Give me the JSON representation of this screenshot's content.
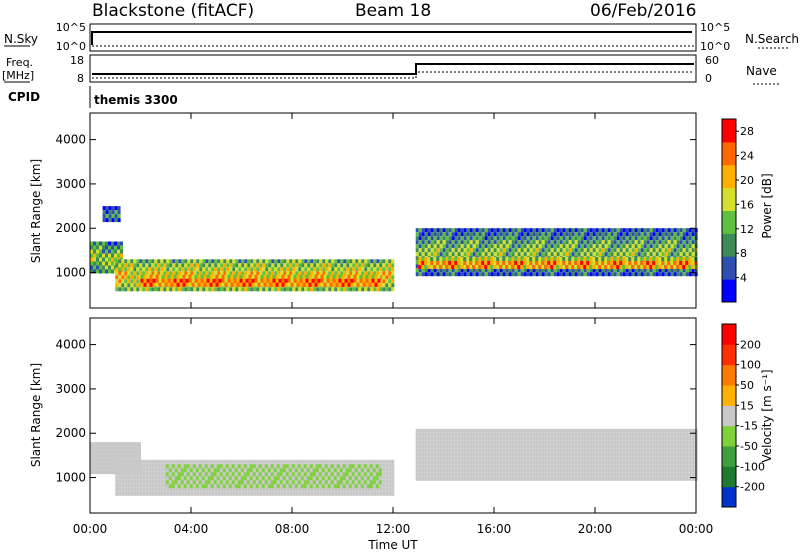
{
  "header": {
    "station": "Blackstone (fitACF)",
    "beam": "Beam 18",
    "date": "06/Feb/2016"
  },
  "top_panels": {
    "nsky_label": "N.Sky",
    "nsky_ticks": [
      "10^5",
      "10^0"
    ],
    "nsearch_label": "N.Search",
    "nsearch_ticks": [
      "10^5",
      "10^0"
    ],
    "freq_label": "Freq.",
    "freq_unit": "[MHz]",
    "freq_ticks": [
      "18",
      "8"
    ],
    "nave_label": "Nave",
    "nave_ticks": [
      "60",
      "0"
    ],
    "cpid_label": "CPID",
    "cpid_value": "themis 3300"
  },
  "chart_data": [
    {
      "type": "heatmap",
      "name": "power",
      "ylabel": "Slant Range [km]",
      "yticks": [
        "1000",
        "2000",
        "3000",
        "4000"
      ],
      "ylim": [
        200,
        4600
      ],
      "xlim": [
        0,
        24
      ],
      "colorbar": {
        "label": "Power [dB]",
        "ticks": [
          "4",
          "8",
          "12",
          "16",
          "20",
          "24",
          "28"
        ],
        "range": [
          0,
          30
        ],
        "colors": [
          "#0000ff",
          "#2e4faf",
          "#3d8c57",
          "#5fbf3f",
          "#d4e02a",
          "#ffaf00",
          "#ff6a00",
          "#ff0000"
        ]
      },
      "regions": [
        {
          "t0": 0.0,
          "t1": 1.3,
          "r0": 1000,
          "r1": 1700,
          "level": 16
        },
        {
          "t0": 0.5,
          "t1": 1.2,
          "r0": 2200,
          "r1": 2500,
          "level": 10
        },
        {
          "t0": 1.0,
          "t1": 12.0,
          "r0": 600,
          "r1": 1300,
          "level": 20
        },
        {
          "t0": 2.0,
          "t1": 11.5,
          "r0": 700,
          "r1": 950,
          "level": 26
        },
        {
          "t0": 12.9,
          "t1": 24.0,
          "r0": 1000,
          "r1": 2000,
          "level": 14
        },
        {
          "t0": 13.0,
          "t1": 24.0,
          "r0": 1100,
          "r1": 1350,
          "level": 24
        }
      ]
    },
    {
      "type": "heatmap",
      "name": "velocity",
      "xlabel": "Time UT",
      "ylabel": "Slant Range [km]",
      "xticks": [
        "00:00",
        "04:00",
        "08:00",
        "12:00",
        "16:00",
        "20:00",
        "00:00"
      ],
      "yticks": [
        "1000",
        "2000",
        "3000",
        "4000"
      ],
      "ylim": [
        200,
        4600
      ],
      "xlim": [
        0,
        24
      ],
      "colorbar": {
        "label": "Velocity [m s⁻¹]",
        "ticks": [
          "200",
          "100",
          "50",
          "15",
          "-15",
          "-50",
          "-100",
          "-200"
        ],
        "range": [
          -250,
          250
        ],
        "colors": [
          "#0033cc",
          "#1e7a2e",
          "#3f9f3f",
          "#7fd13b",
          "#c8c8c8",
          "#ffb000",
          "#ff7a00",
          "#ff3000",
          "#ff0000"
        ]
      },
      "regions": [
        {
          "t0": 0.0,
          "t1": 2.0,
          "r0": 1100,
          "r1": 1800,
          "level": 0
        },
        {
          "t0": 1.0,
          "t1": 12.0,
          "r0": 650,
          "r1": 1400,
          "level": 0
        },
        {
          "t0": 3.0,
          "t1": 11.5,
          "r0": 800,
          "r1": 1300,
          "level": -30
        },
        {
          "t0": 12.9,
          "t1": 24.0,
          "r0": 1000,
          "r1": 2100,
          "level": 0
        }
      ]
    }
  ]
}
